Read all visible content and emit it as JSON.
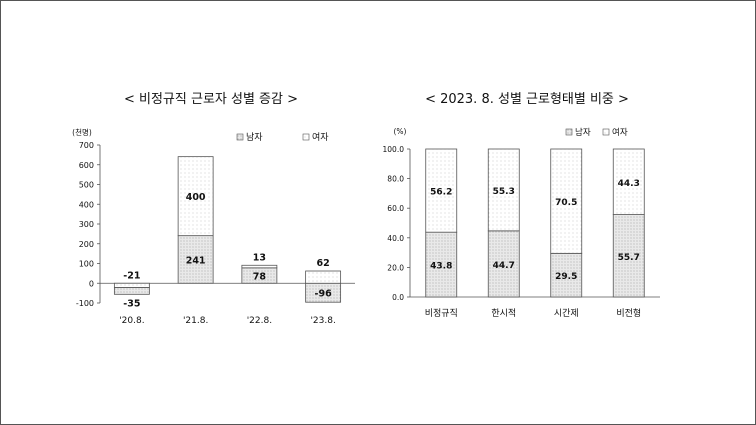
{
  "chart_data": [
    {
      "type": "bar",
      "stacked": true,
      "title": "< 비정규직 근로자 성별 증감 >",
      "unit_label": "(천명)",
      "categories": [
        "'20.8.",
        "'21.8.",
        "'22.8.",
        "'23.8."
      ],
      "series": [
        {
          "name": "남자",
          "values": [
            -35,
            241,
            78,
            -96
          ],
          "labels": [
            "-35",
            "241",
            "78",
            "-96"
          ]
        },
        {
          "name": "여자",
          "values": [
            -21,
            400,
            13,
            62
          ],
          "labels": [
            "-21",
            "400",
            "13",
            "62"
          ]
        }
      ],
      "ylim": [
        -100,
        700
      ],
      "yticks": [
        "-100",
        "0",
        "100",
        "200",
        "300",
        "400",
        "500",
        "600",
        "700"
      ],
      "legend_position": "top-right",
      "grid": false
    },
    {
      "type": "bar",
      "stacked": true,
      "title": "< 2023. 8. 성별 근로형태별 비중 >",
      "unit_label": "(%)",
      "categories": [
        "비정규직",
        "한시적",
        "시간제",
        "비전형"
      ],
      "series": [
        {
          "name": "남자",
          "values": [
            43.8,
            44.7,
            29.5,
            55.7
          ],
          "labels": [
            "43.8",
            "44.7",
            "29.5",
            "55.7"
          ]
        },
        {
          "name": "여자",
          "values": [
            56.2,
            55.3,
            70.5,
            44.3
          ],
          "labels": [
            "56.2",
            "55.3",
            "70.5",
            "44.3"
          ]
        }
      ],
      "ylim": [
        0,
        100
      ],
      "yticks": [
        "0.0",
        "20.0",
        "40.0",
        "60.0",
        "80.0",
        "100.0"
      ],
      "legend_position": "top-right",
      "grid": false
    }
  ],
  "legend": {
    "male_label": "남자",
    "female_label": "여자"
  },
  "colors": {
    "male_fill": "#e9e9e9",
    "female_fill": "#ffffff",
    "outline": "#555555",
    "text": "#111111"
  }
}
